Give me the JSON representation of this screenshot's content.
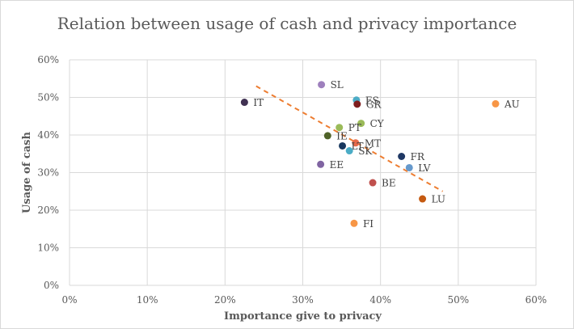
{
  "chart_data": {
    "type": "scatter",
    "title": "Relation between usage of cash and privacy importance",
    "xlabel": "Importance give to privacy",
    "ylabel": "Usage of cash",
    "xlim": [
      0,
      0.6
    ],
    "ylim": [
      0,
      0.6
    ],
    "x_ticks": [
      "0%",
      "10%",
      "20%",
      "30%",
      "40%",
      "50%",
      "60%"
    ],
    "y_ticks": [
      "0%",
      "10%",
      "20%",
      "30%",
      "40%",
      "50%",
      "60%"
    ],
    "grid": true,
    "legend": "none",
    "points": [
      {
        "label": "SL",
        "x": 0.324,
        "y": 0.534,
        "color": "#9e80bd"
      },
      {
        "label": "ES",
        "x": 0.369,
        "y": 0.493,
        "color": "#4bacc6"
      },
      {
        "label": "IT",
        "x": 0.225,
        "y": 0.487,
        "color": "#403152"
      },
      {
        "label": "GR",
        "x": 0.37,
        "y": 0.482,
        "color": "#7f1d1d"
      },
      {
        "label": "AU",
        "x": 0.548,
        "y": 0.483,
        "color": "#f79646"
      },
      {
        "label": "CY",
        "x": 0.375,
        "y": 0.431,
        "color": "#9bbb59"
      },
      {
        "label": "PT",
        "x": 0.347,
        "y": 0.42,
        "color": "#9bbb59"
      },
      {
        "label": "IE",
        "x": 0.332,
        "y": 0.398,
        "color": "#4f6228"
      },
      {
        "label": "MT",
        "x": 0.368,
        "y": 0.379,
        "color": "#e6694a"
      },
      {
        "label": "LT",
        "x": 0.351,
        "y": 0.371,
        "color": "#17375e"
      },
      {
        "label": "SK",
        "x": 0.36,
        "y": 0.358,
        "color": "#4bacc6"
      },
      {
        "label": "FR",
        "x": 0.427,
        "y": 0.343,
        "color": "#1f3864"
      },
      {
        "label": "EE",
        "x": 0.323,
        "y": 0.322,
        "color": "#8064a2"
      },
      {
        "label": "LV",
        "x": 0.437,
        "y": 0.313,
        "color": "#6699cc"
      },
      {
        "label": "BE",
        "x": 0.39,
        "y": 0.273,
        "color": "#c0504d"
      },
      {
        "label": "LU",
        "x": 0.454,
        "y": 0.23,
        "color": "#c55a11"
      },
      {
        "label": "FI",
        "x": 0.366,
        "y": 0.165,
        "color": "#f79646"
      }
    ],
    "trendline": {
      "style": "dashed",
      "color": "#ed7d31",
      "x": [
        0.24,
        0.48
      ],
      "y": [
        0.53,
        0.25
      ]
    }
  }
}
